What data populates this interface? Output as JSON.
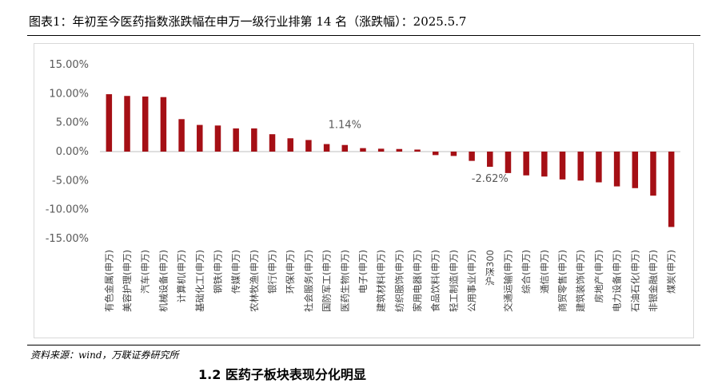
{
  "figure": {
    "title": "图表1：年初至今医药指数涨跌幅在申万一级行业排第 14 名（涨跌幅）：2025.5.7",
    "source": "资料来源：wind，万联证券研究所",
    "section_heading": "1.2 医药子板块表现分化明显"
  },
  "chart_data": {
    "type": "bar",
    "ylim": [
      -15,
      15
    ],
    "yticks": [
      15,
      10,
      5,
      0,
      -5,
      -10,
      -15
    ],
    "ytick_labels": [
      "15.00%",
      "10.00%",
      "5.00%",
      "0.00%",
      "-5.00%",
      "-10.00%",
      "-15.00%"
    ],
    "bar_color": "#a50f15",
    "grid": false,
    "legend": "none",
    "categories": [
      "有色金属(申万)",
      "美容护理(申万)",
      "汽车(申万)",
      "机械设备(申万)",
      "计算机(申万)",
      "基础化工(申万)",
      "钢铁(申万)",
      "传媒(申万)",
      "农林牧渔(申万)",
      "银行(申万)",
      "环保(申万)",
      "社会服务(申万)",
      "国防军工(申万)",
      "医药生物(申万)",
      "电子(申万)",
      "建筑材料(申万)",
      "纺织服饰(申万)",
      "家用电器(申万)",
      "食品饮料(申万)",
      "轻工制造(申万)",
      "公用事业(申万)",
      "沪深300",
      "交通运输(申万)",
      "综合(申万)",
      "通信(申万)",
      "商贸零售(申万)",
      "建筑装饰(申万)",
      "房地产(申万)",
      "电力设备(申万)",
      "石油石化(申万)",
      "非银金融(申万)",
      "煤炭(申万)"
    ],
    "values": [
      9.9,
      9.6,
      9.5,
      9.4,
      5.6,
      4.6,
      4.5,
      4.0,
      4.0,
      3.0,
      2.3,
      2.0,
      1.3,
      1.14,
      0.6,
      0.5,
      0.45,
      0.35,
      -0.6,
      -0.75,
      -1.6,
      -2.62,
      -3.7,
      -4.1,
      -4.3,
      -4.8,
      -5.0,
      -5.3,
      -6.0,
      -6.3,
      -7.6,
      -13.0
    ],
    "data_labels": [
      {
        "category": "医药生物(申万)",
        "text": "1.14%"
      },
      {
        "category": "沪深300",
        "text": "-2.62%"
      }
    ]
  }
}
